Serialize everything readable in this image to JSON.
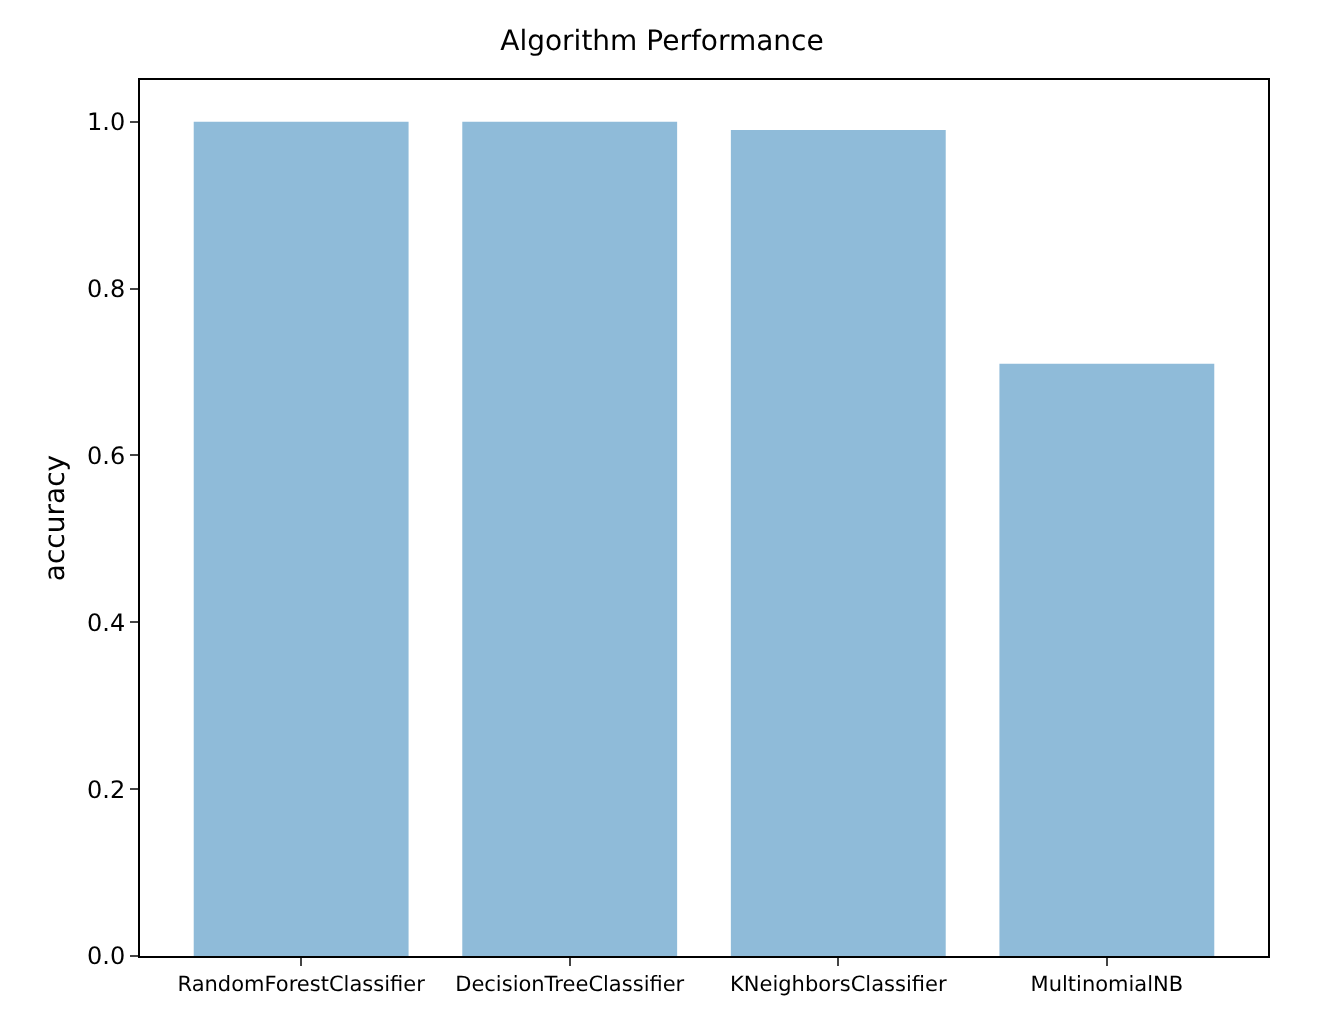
{
  "chart_data": {
    "type": "bar",
    "title": "Algorithm Performance",
    "ylabel": "accuracy",
    "categories": [
      "RandomForestClassifier",
      "DecisionTreeClassifier",
      "KNeighborsClassifier",
      "MultinomialNB"
    ],
    "values": [
      1.0,
      1.0,
      0.99,
      0.71
    ],
    "color": "#8fbbd9",
    "ylim": [
      0,
      1.05
    ],
    "yticks": [
      {
        "value": 0,
        "label": "0.0"
      },
      0.2,
      0.4,
      0.6,
      0.8,
      {
        "value": 1,
        "label": "1.0"
      }
    ],
    "grid": false
  }
}
